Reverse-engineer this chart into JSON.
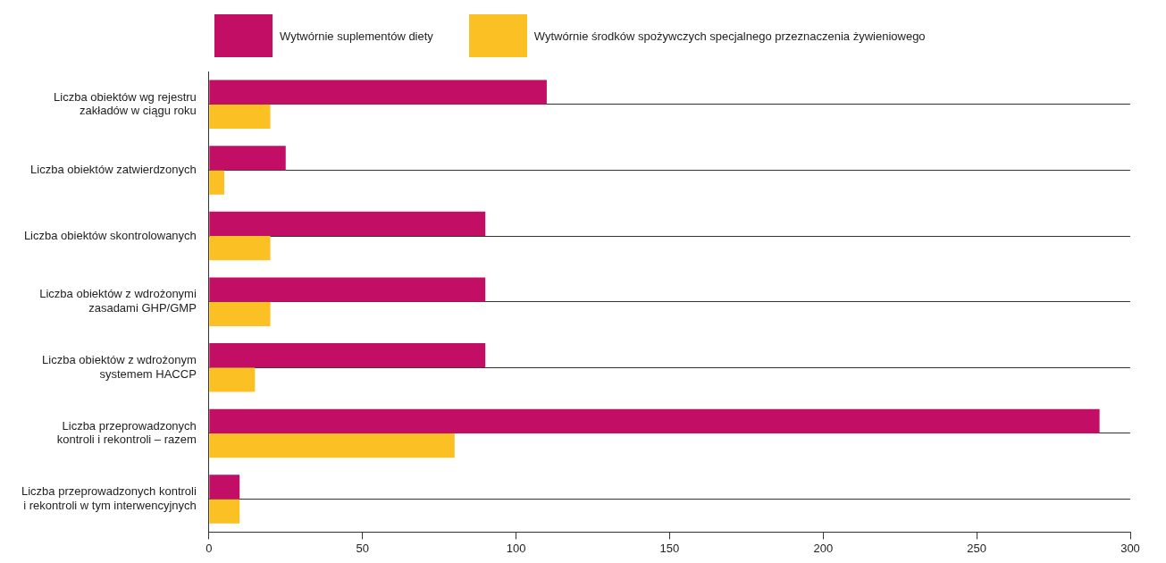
{
  "chart_data": {
    "type": "bar",
    "orientation": "horizontal",
    "categories": [
      "Liczba obiektów wg rejestru\nzakładów w ciągu roku",
      "Liczba obiektów zatwierdzonych",
      "Liczba obiektów skontrolowanych",
      "Liczba obiektów z wdrożonymi\nzasadami GHP/GMP",
      "Liczba obiektów z wdrożonym\nsystemem HACCP",
      "Liczba przeprowadzonych\nkontroli i rekontroli – razem",
      "Liczba przeprowadzonych kontroli\ni rekontroli w tym interwencyjnych"
    ],
    "series": [
      {
        "name": "Wytwórnie suplementów diety",
        "color": "#c20e64",
        "values": [
          110,
          25,
          90,
          90,
          90,
          290,
          10
        ]
      },
      {
        "name": "Wytwórnie środków spożywczych specjalnego przeznaczenia żywieniowego",
        "color": "#fbc124",
        "values": [
          20,
          5,
          20,
          20,
          15,
          80,
          10
        ]
      }
    ],
    "xlim": [
      0,
      300
    ],
    "xticks": [
      0,
      50,
      100,
      150,
      200,
      250,
      300
    ],
    "grid": "y",
    "legend": "top"
  }
}
